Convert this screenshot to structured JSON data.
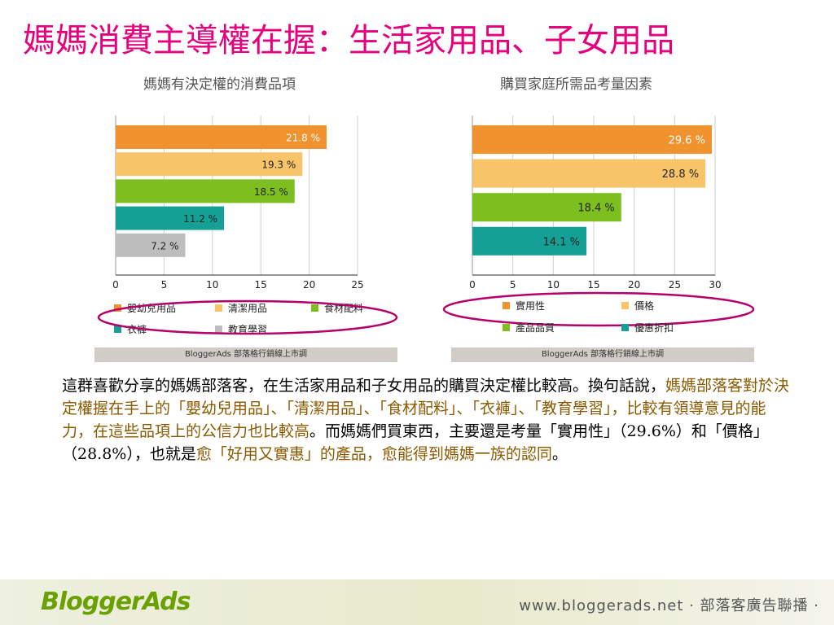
{
  "slide_title": "媽媽消費主導權在握：生活家用品、子女用品",
  "body_paragraph": {
    "p1": "這群喜歡分享的媽媽部落客，在生活家用品和子女用品的購買決定權比較高。換句話說，",
    "h1": "媽媽部落客對於決定權握在手上的「嬰幼兒用品」、「清潔用品」、「食材配料」、「衣褲」、「教育學習」，比較有領導意見的能力，在這些品項上的公信力也比較高",
    "p2": "。而媽媽們買東西，主要還是考量「實用性」（29.6%）和「價格」（28.8%），也就是",
    "h2": "愈「好用又實惠」的產品，愈能得到媽媽一族的認同",
    "p3": "。"
  },
  "source_label": "BloggerAds  部落格行銷線上市調",
  "footer": {
    "logo": "BloggerAds",
    "url": "www.bloggerads.net · 部落客廣告聯播 ·"
  },
  "highlight_color": "#b5006b",
  "chart_data": [
    {
      "type": "bar",
      "orientation": "horizontal",
      "title": "媽媽有決定權的消費品項",
      "categories": [
        "嬰幼兒用品",
        "清潔用品",
        "食材配料",
        "衣褲",
        "教育學習"
      ],
      "values": [
        21.8,
        19.3,
        18.5,
        11.2,
        7.2
      ],
      "value_labels": [
        "21.8 %",
        "19.3 %",
        "18.5 %",
        "11.2 %",
        "7.2 %"
      ],
      "colors": [
        "#f0922d",
        "#f8c46a",
        "#7cbf1e",
        "#15a096",
        "#bdbdbd"
      ],
      "label_colors": [
        "#ffffff",
        "#222222",
        "#222222",
        "#222222",
        "#222222"
      ],
      "xlim": [
        0,
        25
      ],
      "xticks": [
        "0",
        "5",
        "10",
        "15",
        "20",
        "25"
      ],
      "grid": true,
      "legend": "bottom"
    },
    {
      "type": "bar",
      "orientation": "horizontal",
      "title": "購買家庭所需品考量因素",
      "categories": [
        "實用性",
        "價格",
        "產品品質",
        "優惠折扣"
      ],
      "values": [
        29.6,
        28.8,
        18.4,
        14.1
      ],
      "value_labels": [
        "29.6 %",
        "28.8 %",
        "18.4 %",
        "14.1 %"
      ],
      "colors": [
        "#f0922d",
        "#f8c46a",
        "#7cbf1e",
        "#15a096"
      ],
      "label_colors": [
        "#ffffff",
        "#222222",
        "#222222",
        "#222222"
      ],
      "xlim": [
        0,
        30
      ],
      "xticks": [
        "0",
        "5",
        "10",
        "15",
        "20",
        "25",
        "30"
      ],
      "grid": true,
      "legend": "bottom"
    }
  ]
}
